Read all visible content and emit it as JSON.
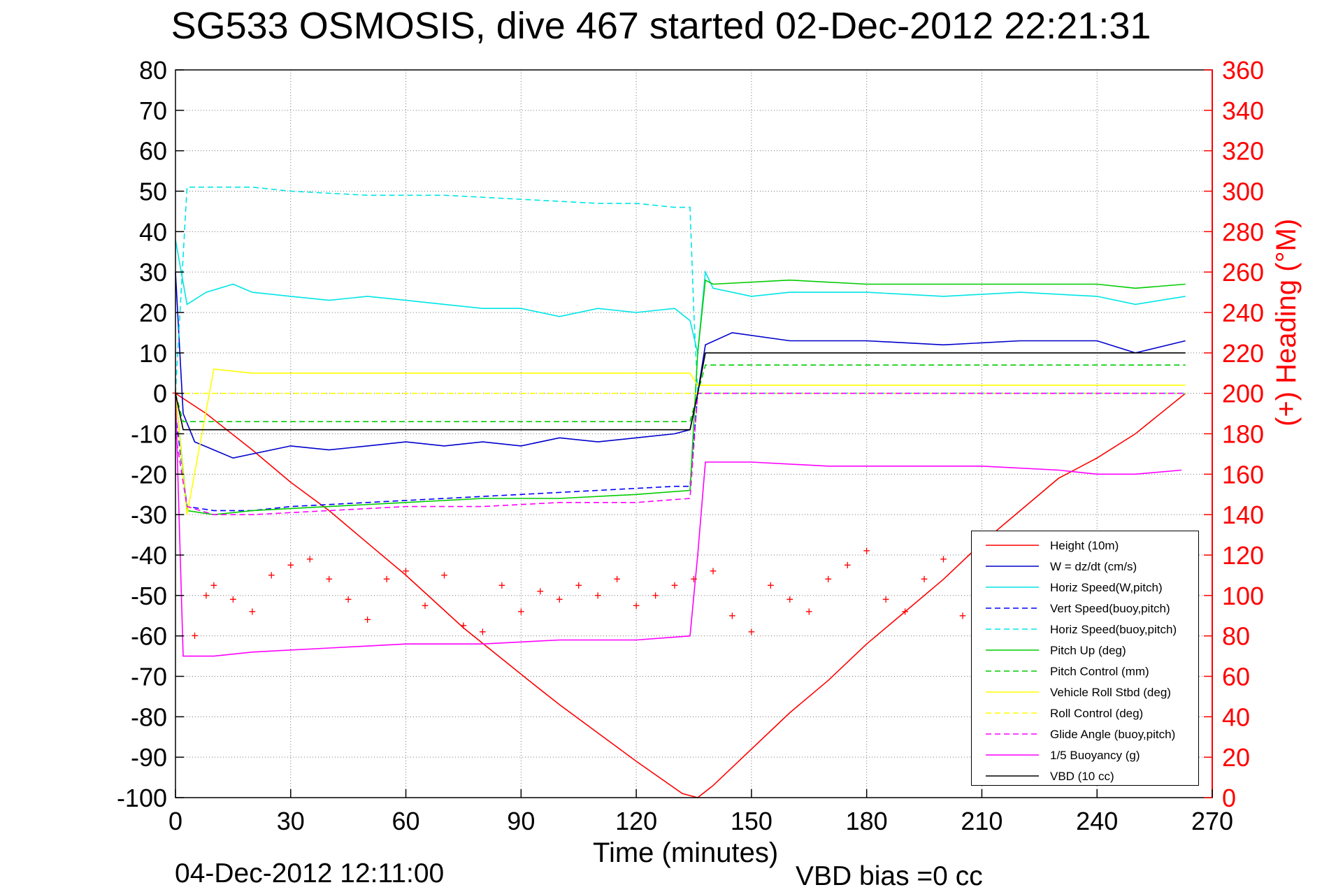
{
  "title": "SG533 OSMOSIS, dive 467 started 02-Dec-2012 22:21:31",
  "footer": {
    "left_timestamp": "04-Dec-2012 12:11:00",
    "vbd_bias": "VBD bias =0 cc"
  },
  "chart_data": {
    "type": "line",
    "xlabel": "Time (minutes)",
    "ylabel": "",
    "y2label": "(+) Heading (°M)",
    "xlim": [
      0,
      270
    ],
    "ylim": [
      -100,
      80
    ],
    "y2lim": [
      0,
      360
    ],
    "xticks": [
      0,
      30,
      60,
      90,
      120,
      150,
      180,
      210,
      240,
      270
    ],
    "yticks": [
      80,
      70,
      60,
      50,
      40,
      30,
      20,
      10,
      0,
      -10,
      -20,
      -30,
      -40,
      -50,
      -60,
      -70,
      -80,
      -90,
      -100
    ],
    "y2ticks": [
      360,
      340,
      320,
      300,
      280,
      260,
      240,
      220,
      200,
      180,
      160,
      140,
      120,
      100,
      80,
      60,
      40,
      20,
      0
    ],
    "grid": true,
    "legend_position": "lower-right",
    "series": [
      {
        "name": "Height (10m)",
        "color": "#ff0000",
        "style": "solid",
        "axis": "left",
        "x": [
          0,
          8,
          20,
          30,
          40,
          50,
          60,
          75,
          92,
          100,
          110,
          120,
          132,
          136,
          140,
          150,
          160,
          170,
          180,
          190,
          200,
          210,
          220,
          230,
          240,
          250,
          263
        ],
        "y": [
          0,
          -5,
          -14,
          -22,
          -29,
          -37,
          -45,
          -58,
          -71,
          -77,
          -84,
          -91,
          -99,
          -100,
          -97,
          -88,
          -79,
          -71,
          -62,
          -54,
          -46,
          -37,
          -29,
          -21,
          -16,
          -10,
          0
        ]
      },
      {
        "name": "W = dz/dt (cm/s)",
        "color": "#0000cc",
        "style": "solid",
        "axis": "left",
        "x": [
          0,
          2,
          5,
          10,
          15,
          20,
          30,
          40,
          50,
          60,
          70,
          80,
          90,
          100,
          110,
          120,
          130,
          134,
          136,
          138,
          145,
          160,
          180,
          200,
          220,
          240,
          250,
          263
        ],
        "y": [
          30,
          -5,
          -12,
          -14,
          -16,
          -15,
          -13,
          -14,
          -13,
          -12,
          -13,
          -12,
          -13,
          -11,
          -12,
          -11,
          -10,
          -9,
          0,
          12,
          15,
          13,
          13,
          12,
          13,
          13,
          10,
          13
        ]
      },
      {
        "name": "Horiz Speed(W,pitch)",
        "color": "#00e5e5",
        "style": "solid",
        "axis": "left",
        "x": [
          0,
          3,
          8,
          15,
          20,
          30,
          40,
          50,
          60,
          70,
          80,
          90,
          100,
          110,
          120,
          130,
          134,
          136,
          138,
          140,
          150,
          160,
          180,
          200,
          220,
          240,
          250,
          263
        ],
        "y": [
          38,
          22,
          25,
          27,
          25,
          24,
          23,
          24,
          23,
          22,
          21,
          21,
          19,
          21,
          20,
          21,
          18,
          10,
          30,
          26,
          24,
          25,
          25,
          24,
          25,
          24,
          22,
          24
        ]
      },
      {
        "name": "Vert Speed(buoy,pitch)",
        "color": "#0000ff",
        "style": "dashed",
        "axis": "left",
        "x": [
          0,
          3,
          10,
          20,
          30,
          50,
          70,
          90,
          110,
          130,
          134,
          136,
          263
        ],
        "y": [
          -5,
          -28,
          -29,
          -29,
          -28,
          -27,
          -26,
          -25,
          -24,
          -23,
          -23,
          0,
          0
        ]
      },
      {
        "name": "Horiz Speed(buoy,pitch)",
        "color": "#00e5e5",
        "style": "dashed",
        "axis": "left",
        "x": [
          0,
          3,
          10,
          20,
          30,
          50,
          70,
          90,
          110,
          120,
          130,
          134,
          135,
          136,
          263
        ],
        "y": [
          0,
          51,
          51,
          51,
          50,
          49,
          49,
          48,
          47,
          47,
          46,
          46,
          20,
          0,
          0
        ]
      },
      {
        "name": "Pitch Up (deg)",
        "color": "#00cc00",
        "style": "solid",
        "axis": "left",
        "x": [
          0,
          3,
          10,
          20,
          40,
          60,
          80,
          100,
          120,
          134,
          136,
          138,
          140,
          160,
          180,
          200,
          220,
          240,
          250,
          263
        ],
        "y": [
          0,
          -29,
          -30,
          -29,
          -28,
          -27,
          -26,
          -26,
          -25,
          -24,
          10,
          28,
          27,
          28,
          27,
          27,
          27,
          27,
          26,
          27
        ]
      },
      {
        "name": "Pitch Control (mm)",
        "color": "#00cc00",
        "style": "dashed",
        "axis": "left",
        "x": [
          0,
          2,
          134,
          136,
          138,
          263
        ],
        "y": [
          0,
          -7,
          -7,
          0,
          7,
          7
        ]
      },
      {
        "name": "Vehicle Roll Stbd (deg)",
        "color": "#ffff00",
        "style": "solid",
        "axis": "left",
        "x": [
          0,
          3,
          10,
          20,
          40,
          60,
          80,
          100,
          120,
          134,
          136,
          138,
          150,
          170,
          190,
          210,
          230,
          250,
          263
        ],
        "y": [
          0,
          -30,
          6,
          5,
          5,
          5,
          5,
          5,
          5,
          5,
          2,
          2,
          2,
          2,
          2,
          2,
          2,
          2,
          2
        ]
      },
      {
        "name": "Roll Control (deg)",
        "color": "#ffff00",
        "style": "dashed",
        "axis": "left",
        "x": [
          0,
          263
        ],
        "y": [
          0,
          0
        ]
      },
      {
        "name": "Glide Angle (buoy,pitch)",
        "color": "#ff00ff",
        "style": "dashed",
        "axis": "left",
        "x": [
          0,
          3,
          10,
          20,
          40,
          60,
          80,
          100,
          120,
          134,
          136,
          263
        ],
        "y": [
          -10,
          -28,
          -30,
          -30,
          -29,
          -28,
          -28,
          -27,
          -27,
          -26,
          0,
          0
        ]
      },
      {
        "name": "1/5 Buoyancy (g)",
        "color": "#ff00ff",
        "style": "solid",
        "axis": "left",
        "x": [
          0,
          2,
          10,
          20,
          40,
          60,
          80,
          100,
          120,
          134,
          136,
          138,
          150,
          170,
          190,
          210,
          230,
          240,
          250,
          262
        ],
        "y": [
          0,
          -65,
          -65,
          -64,
          -63,
          -62,
          -62,
          -61,
          -61,
          -60,
          -40,
          -17,
          -17,
          -18,
          -18,
          -18,
          -19,
          -20,
          -20,
          -19
        ]
      },
      {
        "name": "VBD (10 cc)",
        "color": "#000000",
        "style": "solid",
        "axis": "left",
        "x": [
          0,
          2,
          10,
          50,
          100,
          134,
          136,
          138,
          150,
          200,
          250,
          263
        ],
        "y": [
          0,
          -9,
          -9,
          -9,
          -9,
          -9,
          0,
          10,
          10,
          10,
          10,
          10
        ]
      },
      {
        "name": "Heading",
        "color": "#ff0000",
        "style": "markers",
        "axis": "right",
        "x": [
          0,
          5,
          8,
          10,
          15,
          20,
          25,
          30,
          35,
          40,
          45,
          50,
          55,
          60,
          65,
          70,
          75,
          80,
          85,
          90,
          95,
          100,
          105,
          110,
          115,
          120,
          125,
          130,
          135,
          140,
          145,
          150,
          155,
          160,
          165,
          170,
          175,
          180,
          185,
          190,
          195,
          200,
          205,
          210,
          215,
          220
        ],
        "y": [
          200,
          80,
          100,
          105,
          98,
          92,
          110,
          115,
          118,
          108,
          98,
          88,
          108,
          112,
          95,
          110,
          85,
          82,
          105,
          92,
          102,
          98,
          105,
          100,
          108,
          95,
          100,
          105,
          108,
          112,
          90,
          82,
          105,
          98,
          92,
          108,
          115,
          122,
          98,
          92,
          108,
          118,
          90,
          85,
          102,
          88
        ]
      }
    ]
  }
}
